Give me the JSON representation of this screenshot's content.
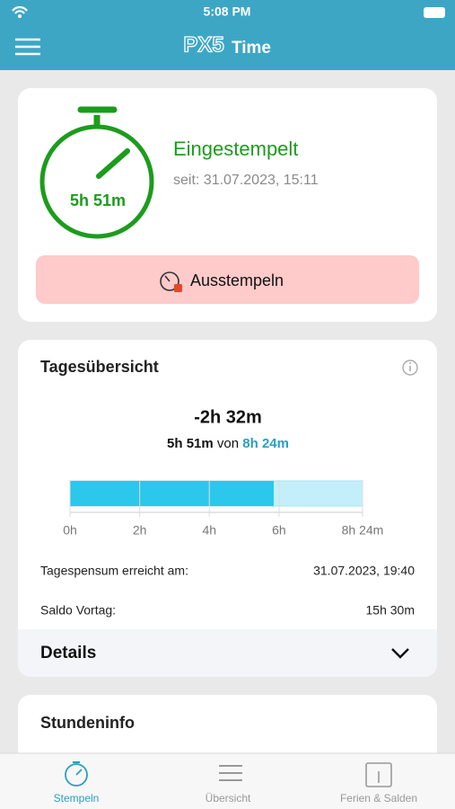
{
  "status_bar": {
    "time": "5:08 PM"
  },
  "header": {
    "logo": "PX5",
    "title": "Time"
  },
  "clock_card": {
    "elapsed": "5h 51m",
    "status": "Eingestempelt",
    "since": "seit: 31.07.2023, 15:11",
    "button": "Ausstempeln"
  },
  "day_overview": {
    "title": "Tagesübersicht",
    "delta": "-2h 32m",
    "worked": "5h 51m",
    "of": "von",
    "target": "8h 24m",
    "bar": {
      "value": 351,
      "xlim": [
        0,
        504
      ],
      "xticks": [
        {
          "value": 0,
          "label": "0h"
        },
        {
          "value": 120,
          "label": "2h"
        },
        {
          "value": 240,
          "label": "4h"
        },
        {
          "value": 360,
          "label": "6h"
        },
        {
          "value": 504,
          "label": "8h 24m"
        }
      ]
    },
    "rows": [
      {
        "label": "Tagespensum erreicht am:",
        "value": "31.07.2023, 19:40"
      },
      {
        "label": "Saldo Vortag:",
        "value": "15h 30m"
      }
    ],
    "details": "Details"
  },
  "hours_card": {
    "title": "Stundeninfo"
  },
  "tabs": [
    "Stempeln",
    "Übersicht",
    "Ferien & Salden"
  ]
}
